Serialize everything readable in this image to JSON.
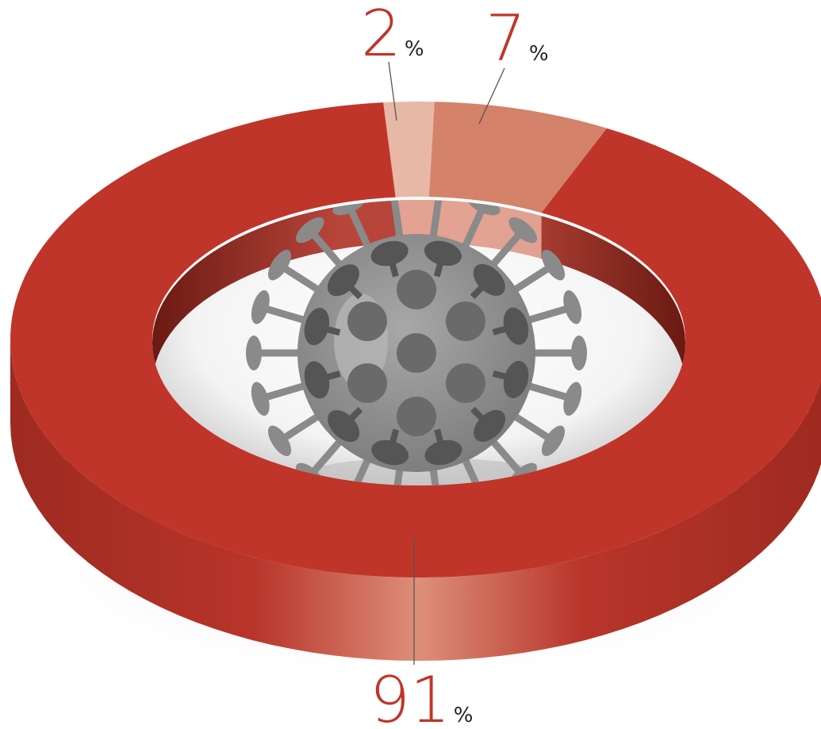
{
  "chart_data": {
    "type": "pie",
    "variant": "donut-3d",
    "categories": [
      "",
      "",
      ""
    ],
    "values": [
      2,
      7,
      91
    ],
    "labels": [
      "2",
      "7",
      "91"
    ],
    "unit": "%",
    "colors": [
      "#e8b8a6",
      "#d4826a",
      "#c0352a"
    ],
    "label_color": "#c0352a",
    "center_icon": "virus-icon"
  }
}
